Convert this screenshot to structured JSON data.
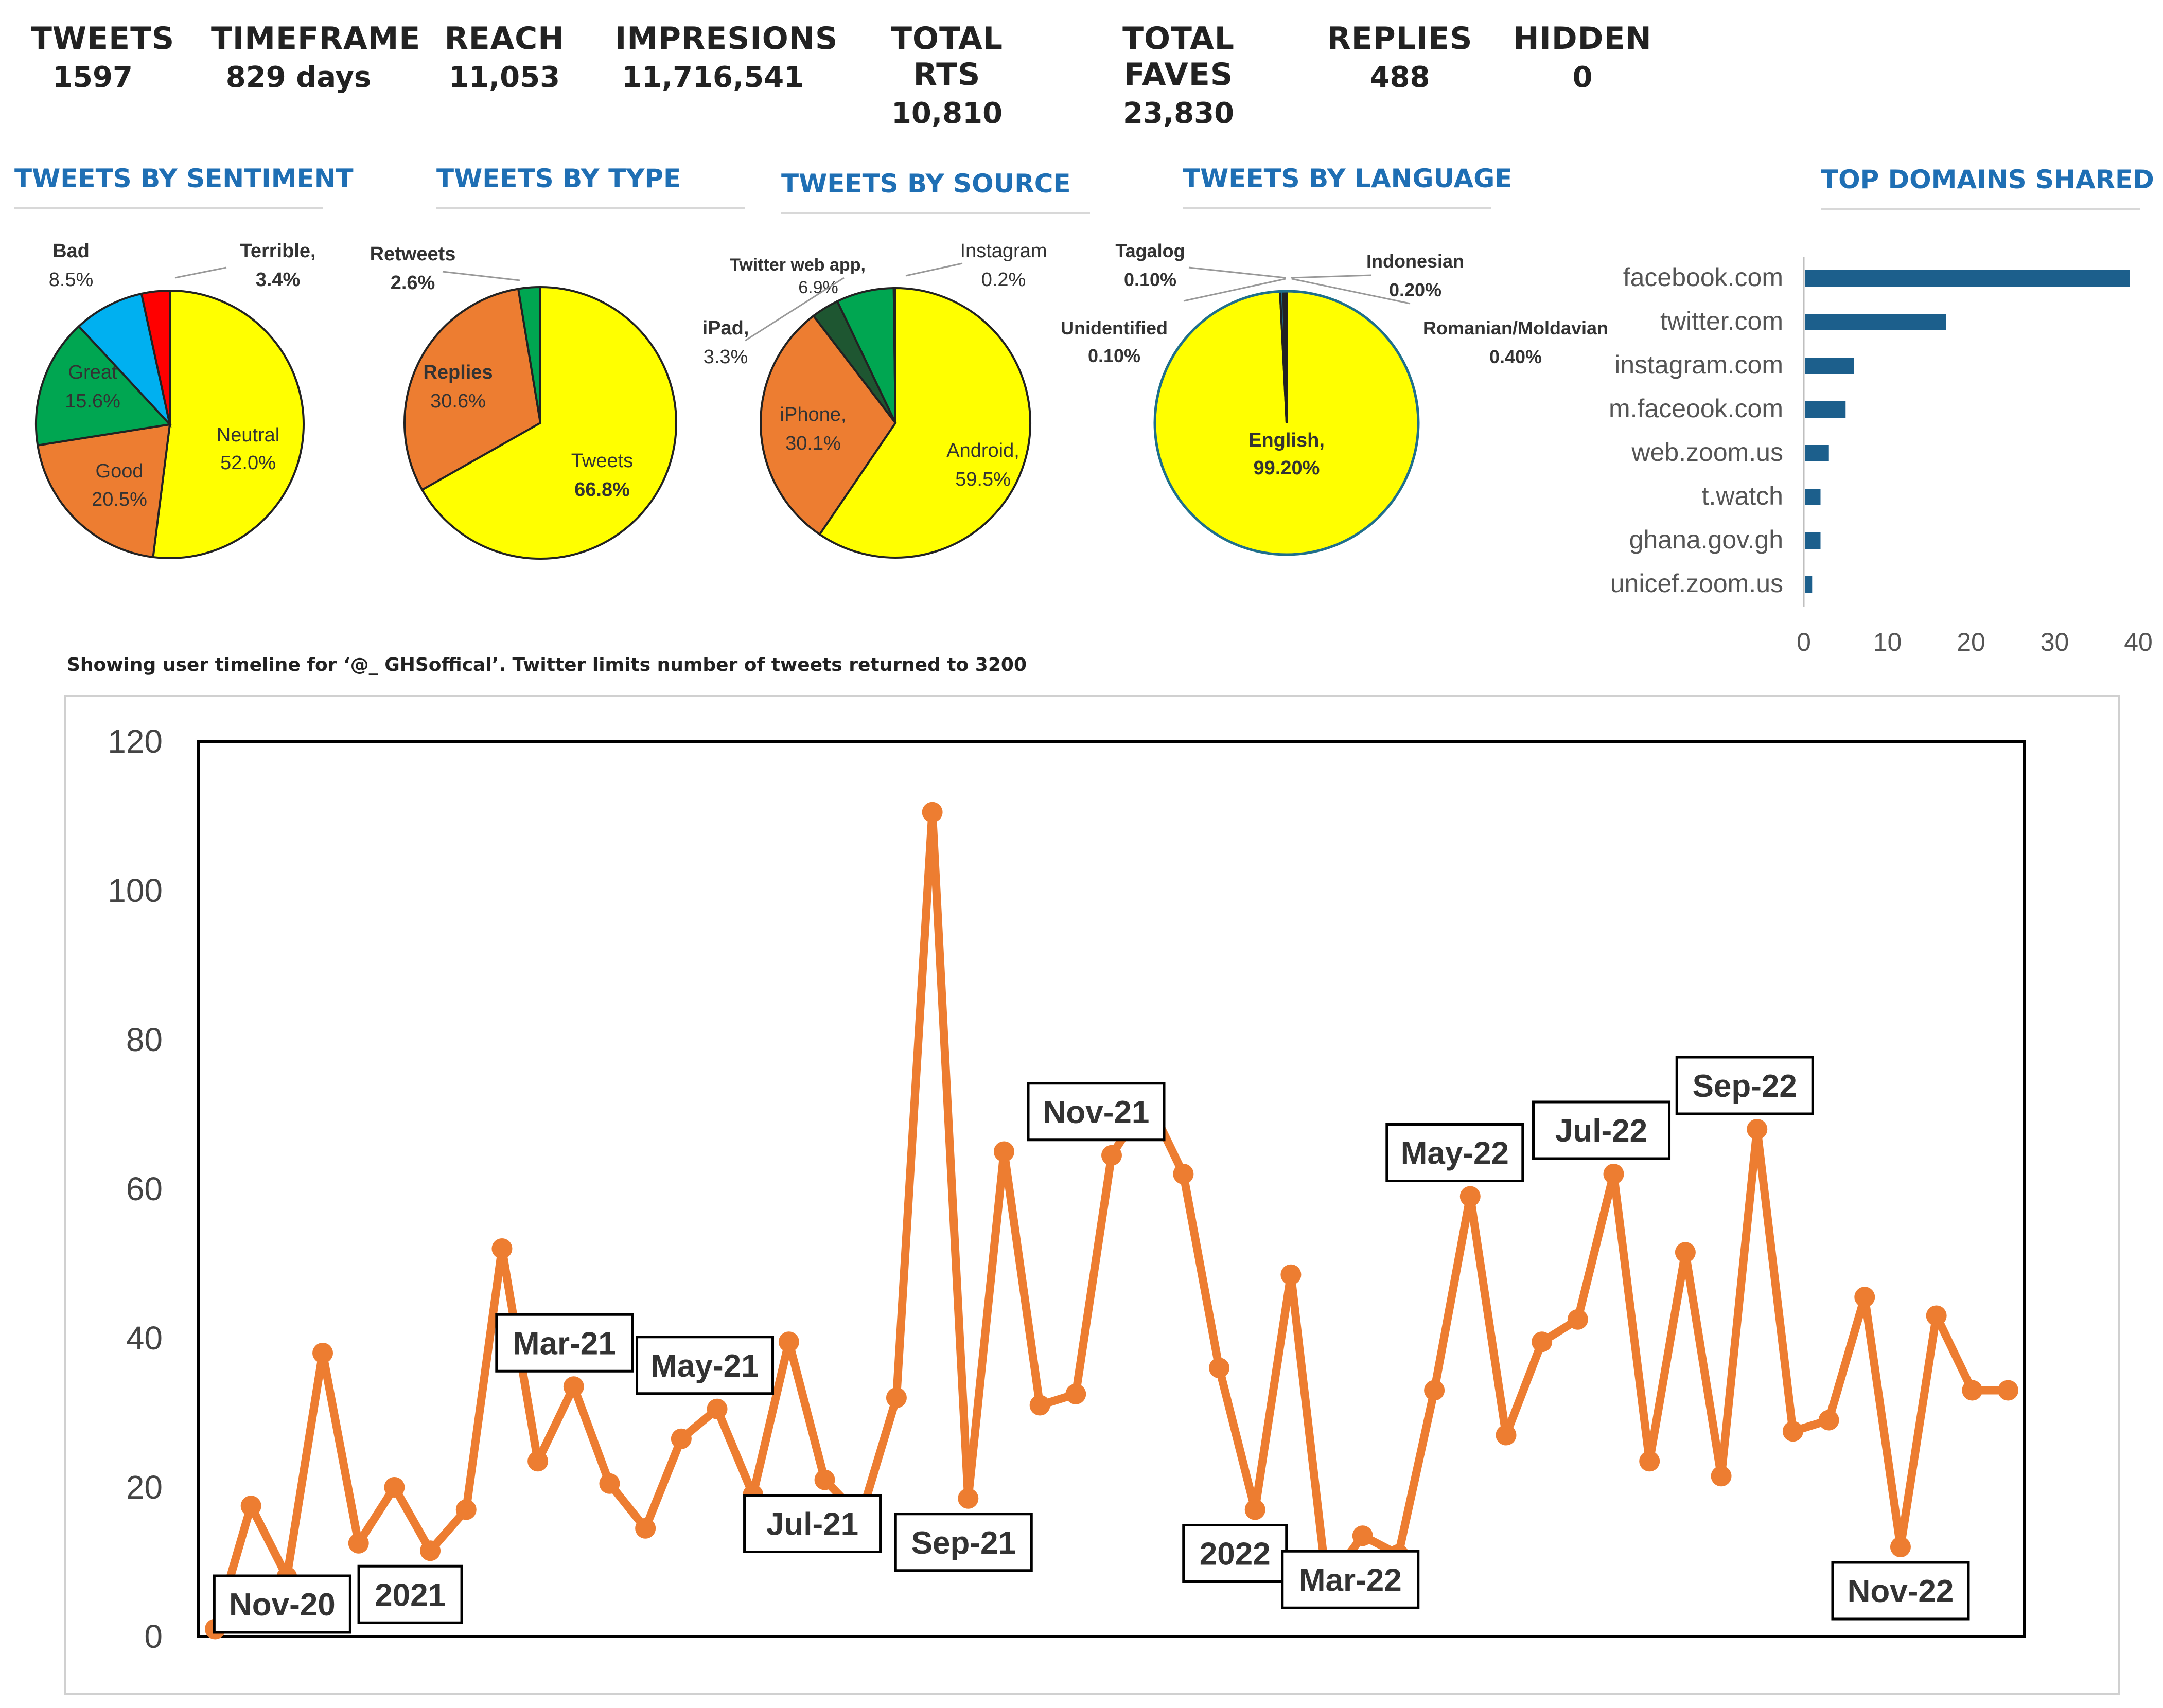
{
  "stats": [
    {
      "label": "TWEETS",
      "value": "1597"
    },
    {
      "label": "TIMEFRAME",
      "value": "829 days"
    },
    {
      "label": "REACH",
      "value": "11,053"
    },
    {
      "label": "IMPRESIONS",
      "value": "11,716,541"
    },
    {
      "label": "TOTAL RTS",
      "value": "10,810"
    },
    {
      "label": "TOTAL FAVES",
      "value": "23,830"
    },
    {
      "label": "REPLIES",
      "value": "488"
    },
    {
      "label": "HIDDEN",
      "value": "0"
    }
  ],
  "panel_titles": {
    "sentiment": "TWEETS BY SENTIMENT",
    "type": "TWEETS BY TYPE",
    "source": "TWEETS BY SOURCE",
    "language": "TWEETS BY LANGUAGE",
    "domains": "TOP DOMAINS SHARED"
  },
  "timeline_note": "Showing user timeline for ‘@_ GHSoffical’. Twitter limits number of tweets returned to 3200",
  "colors": {
    "accent": "#1f6fb4",
    "line": "#ed7d31",
    "bar": "#1c5f8c",
    "yellow": "#ffff00",
    "orange": "#ed7d31",
    "green": "#00a651",
    "blue": "#00b0f0",
    "red": "#ff0000",
    "darkgreen": "#1e5631",
    "teal": "#1f6f8b"
  },
  "chart_data": [
    {
      "type": "pie",
      "title": "TWEETS BY SENTIMENT",
      "slices": [
        {
          "label": "Neutral",
          "value": 52.0,
          "text": "52.0%",
          "color": "#ffff00"
        },
        {
          "label": "Good",
          "value": 20.5,
          "text": "20.5%",
          "color": "#ed7d31"
        },
        {
          "label": "Great",
          "value": 15.6,
          "text": "15.6%",
          "color": "#00a651"
        },
        {
          "label": "Bad",
          "value": 8.5,
          "text": "8.5%",
          "color": "#00b0f0"
        },
        {
          "label": "Terrible,",
          "value": 3.4,
          "text": "3.4%",
          "color": "#ff0000"
        }
      ]
    },
    {
      "type": "pie",
      "title": "TWEETS BY TYPE",
      "slices": [
        {
          "label": "Tweets",
          "value": 66.8,
          "text": "66.8%",
          "color": "#ffff00"
        },
        {
          "label": "Replies",
          "value": 30.6,
          "text": "30.6%",
          "color": "#ed7d31"
        },
        {
          "label": "Retweets",
          "value": 2.6,
          "text": "2.6%",
          "color": "#00a651"
        }
      ]
    },
    {
      "type": "pie",
      "title": "TWEETS BY SOURCE",
      "slices": [
        {
          "label": "Android,",
          "value": 59.5,
          "text": "59.5%",
          "color": "#ffff00"
        },
        {
          "label": "iPhone,",
          "value": 30.1,
          "text": "30.1%",
          "color": "#ed7d31"
        },
        {
          "label": "iPad,",
          "value": 3.3,
          "text": "3.3%",
          "color": "#1e5631"
        },
        {
          "label": "Twitter web app,",
          "value": 6.9,
          "text": "6.9%",
          "color": "#00a651"
        },
        {
          "label": "Instagram",
          "value": 0.2,
          "text": "0.2%",
          "color": "#1f6f8b"
        }
      ]
    },
    {
      "type": "pie",
      "title": "TWEETS BY LANGUAGE",
      "slices": [
        {
          "label": "English,",
          "value": 99.2,
          "text": "99.20%",
          "color": "#ffff00"
        },
        {
          "label": "Romanian/Moldavian",
          "value": 0.4,
          "text": "0.40%",
          "color": "#1f6f8b"
        },
        {
          "label": "Indonesian",
          "value": 0.2,
          "text": "0.20%",
          "color": "#1f6f8b"
        },
        {
          "label": "Tagalog",
          "value": 0.1,
          "text": "0.10%",
          "color": "#1f6f8b"
        },
        {
          "label": "Unidentified",
          "value": 0.1,
          "text": "0.10%",
          "color": "#1f6f8b"
        }
      ]
    },
    {
      "type": "bar",
      "orientation": "horizontal",
      "title": "TOP DOMAINS SHARED",
      "categories": [
        "facebook.com",
        "twitter.com",
        "instagram.com",
        "m.faceook.com",
        "web.zoom.us",
        "t.watch",
        "ghana.gov.gh",
        "unicef.zoom.us"
      ],
      "values": [
        39,
        17,
        6,
        5,
        3,
        2,
        2,
        1
      ],
      "xlim": [
        0,
        40
      ],
      "xticks": [
        "0",
        "10",
        "20",
        "30",
        "40"
      ]
    },
    {
      "type": "line",
      "values": [
        1,
        17.5,
        8,
        38,
        12.5,
        20,
        11.5,
        17,
        52,
        23.5,
        33.5,
        20.5,
        14.5,
        26.5,
        30.5,
        19,
        39.5,
        21,
        16,
        32,
        110.5,
        18.5,
        65,
        31,
        32.5,
        64.5,
        72,
        62,
        36,
        17,
        48.5,
        7,
        13.5,
        11,
        33,
        59,
        27,
        39.5,
        42.5,
        62,
        23.5,
        51.5,
        21.5,
        68,
        27.5,
        29,
        45.5,
        12,
        43,
        33,
        33
      ],
      "ylim": [
        0,
        120
      ],
      "yticks": [
        "0",
        "20",
        "40",
        "60",
        "80",
        "100",
        "120"
      ],
      "annotations": [
        {
          "text": "Nov-20",
          "index": 2
        },
        {
          "text": "2021",
          "index": 6
        },
        {
          "text": "Mar-21",
          "index": 10
        },
        {
          "text": "May-21",
          "index": 14
        },
        {
          "text": "Jul-21",
          "index": 17
        },
        {
          "text": "Sep-21",
          "index": 21
        },
        {
          "text": "Nov-21",
          "index": 25
        },
        {
          "text": "2022",
          "index": 29
        },
        {
          "text": "Mar-22",
          "index": 32
        },
        {
          "text": "May-22",
          "index": 35
        },
        {
          "text": "Jul-22",
          "index": 39
        },
        {
          "text": "Sep-22",
          "index": 43
        },
        {
          "text": "Nov-22",
          "index": 47
        }
      ]
    }
  ]
}
